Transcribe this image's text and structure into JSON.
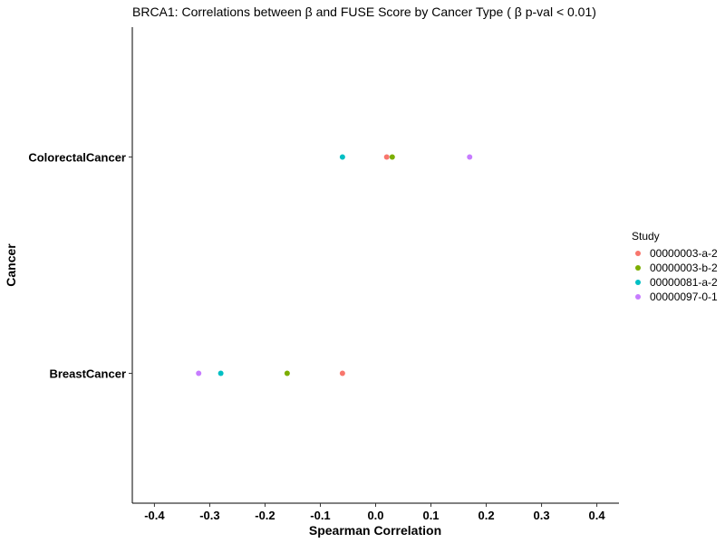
{
  "chart_data": {
    "type": "scatter",
    "title": "BRCA1: Correlations between  β  and FUSE Score by Cancer Type ( β  p-val < 0.01)",
    "xlabel": "Spearman Correlation",
    "ylabel": "Cancer",
    "xlim": [
      -0.44,
      0.44
    ],
    "x_ticks": [
      -0.4,
      -0.3,
      -0.2,
      -0.1,
      0.0,
      0.1,
      0.2,
      0.3,
      0.4
    ],
    "x_tick_labels": [
      "-0.4",
      "-0.3",
      "-0.2",
      "-0.1",
      "0.0",
      "0.1",
      "0.2",
      "0.3",
      "0.4"
    ],
    "categories": [
      "BreastCancer",
      "ColorectalCancer"
    ],
    "grid": false,
    "legend": {
      "title": "Study",
      "position": "right"
    },
    "series": [
      {
        "name": "00000003-a-2",
        "color": "#F8766D",
        "points": [
          {
            "category": "ColorectalCancer",
            "x": 0.02
          },
          {
            "category": "BreastCancer",
            "x": -0.06
          }
        ]
      },
      {
        "name": "00000003-b-2",
        "color": "#7CAE00",
        "points": [
          {
            "category": "ColorectalCancer",
            "x": 0.03
          },
          {
            "category": "BreastCancer",
            "x": -0.16
          }
        ]
      },
      {
        "name": "00000081-a-2",
        "color": "#00BFC4",
        "points": [
          {
            "category": "ColorectalCancer",
            "x": -0.06
          },
          {
            "category": "BreastCancer",
            "x": -0.28
          }
        ]
      },
      {
        "name": "00000097-0-1",
        "color": "#C77CFF",
        "points": [
          {
            "category": "ColorectalCancer",
            "x": 0.17
          },
          {
            "category": "BreastCancer",
            "x": -0.32
          }
        ]
      }
    ]
  }
}
